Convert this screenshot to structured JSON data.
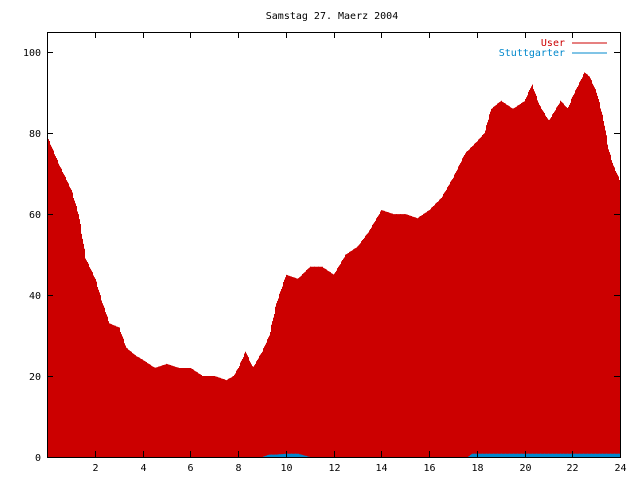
{
  "chart_data": {
    "type": "bar",
    "title": "Samstag 27. Maerz 2004",
    "xlabel": "",
    "ylabel": "",
    "xlim": [
      0,
      24
    ],
    "ylim": [
      0,
      105
    ],
    "xticks": [
      "2",
      "4",
      "6",
      "8",
      "10",
      "12",
      "14",
      "16",
      "18",
      "20",
      "22",
      "24"
    ],
    "yticks": [
      "0",
      "20",
      "40",
      "60",
      "80",
      "100"
    ],
    "legend_position": "top-right",
    "grid": false,
    "series": [
      {
        "name": "User",
        "color": "#cc0000",
        "style": "impulses",
        "points": [
          [
            0.0,
            79
          ],
          [
            0.5,
            72
          ],
          [
            1.0,
            66
          ],
          [
            1.3,
            60
          ],
          [
            1.6,
            49
          ],
          [
            2.0,
            44
          ],
          [
            2.3,
            38
          ],
          [
            2.6,
            33
          ],
          [
            3.0,
            32
          ],
          [
            3.3,
            27
          ],
          [
            3.7,
            25
          ],
          [
            4.0,
            24
          ],
          [
            4.5,
            22
          ],
          [
            5.0,
            23
          ],
          [
            5.5,
            22
          ],
          [
            6.0,
            22
          ],
          [
            6.5,
            20
          ],
          [
            7.0,
            20
          ],
          [
            7.5,
            19
          ],
          [
            7.8,
            20
          ],
          [
            8.0,
            22
          ],
          [
            8.3,
            26
          ],
          [
            8.6,
            22
          ],
          [
            9.0,
            26
          ],
          [
            9.3,
            30
          ],
          [
            9.6,
            38
          ],
          [
            10.0,
            45
          ],
          [
            10.5,
            44
          ],
          [
            11.0,
            47
          ],
          [
            11.5,
            47
          ],
          [
            12.0,
            45
          ],
          [
            12.5,
            50
          ],
          [
            13.0,
            52
          ],
          [
            13.5,
            56
          ],
          [
            14.0,
            61
          ],
          [
            14.5,
            60
          ],
          [
            15.0,
            60
          ],
          [
            15.5,
            59
          ],
          [
            16.0,
            61
          ],
          [
            16.5,
            64
          ],
          [
            17.0,
            69
          ],
          [
            17.5,
            75
          ],
          [
            18.0,
            78
          ],
          [
            18.3,
            80
          ],
          [
            18.6,
            86
          ],
          [
            19.0,
            88
          ],
          [
            19.5,
            86
          ],
          [
            20.0,
            88
          ],
          [
            20.3,
            92
          ],
          [
            20.6,
            87
          ],
          [
            21.0,
            83
          ],
          [
            21.5,
            88
          ],
          [
            21.8,
            86
          ],
          [
            22.0,
            89
          ],
          [
            22.5,
            95
          ],
          [
            22.7,
            94
          ],
          [
            23.0,
            90
          ],
          [
            23.3,
            83
          ],
          [
            23.5,
            76
          ],
          [
            23.7,
            72
          ],
          [
            24.0,
            68
          ]
        ]
      },
      {
        "name": "Stuttgarter",
        "color": "#0088cc",
        "style": "impulses",
        "points": [
          [
            0.0,
            0
          ],
          [
            9.0,
            0
          ],
          [
            9.3,
            0.6
          ],
          [
            9.6,
            0.6
          ],
          [
            10.0,
            0.8
          ],
          [
            10.5,
            0.8
          ],
          [
            11.0,
            0
          ],
          [
            17.6,
            0
          ],
          [
            17.8,
            0.8
          ],
          [
            24.0,
            0.8
          ]
        ]
      }
    ]
  }
}
